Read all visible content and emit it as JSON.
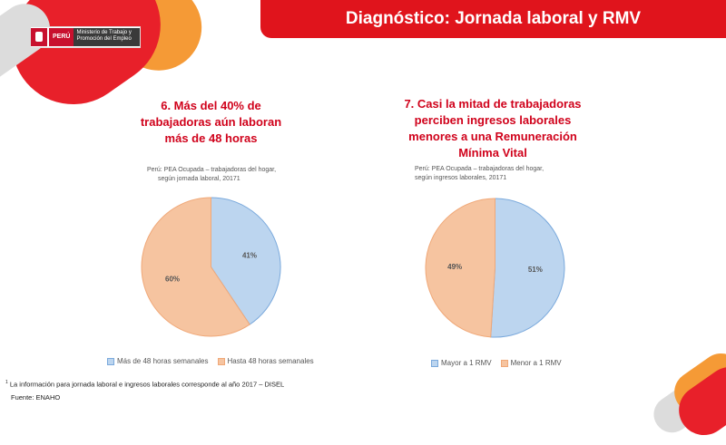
{
  "header": {
    "title": "Diagnóstico: Jornada laboral y RMV"
  },
  "logo": {
    "country": "PERÚ",
    "ministry": "Ministerio de Trabajo y Promoción del Empleo"
  },
  "panels": [
    {
      "heading": [
        "6. Más del 40% de",
        "trabajadoras aún laboran",
        "más de 48 horas"
      ],
      "subtitle": [
        "Perú: PEA Ocupada – trabajadoras del hogar,",
        "según jornada laboral, 20171"
      ]
    },
    {
      "heading": [
        "7. Casi la mitad de trabajadoras",
        "perciben ingresos laborales",
        "menores a una Remuneración",
        "Mínima Vital"
      ],
      "subtitle": [
        "Perú: PEA Ocupada – trabajadoras del hogar,",
        "según ingresos laborales, 20171"
      ]
    }
  ],
  "chart_data": [
    {
      "type": "pie",
      "categories": [
        "Más de 48 horas semanales",
        "Hasta 48 horas semanales"
      ],
      "values": [
        41,
        60
      ],
      "labels": [
        "41%",
        "60%"
      ],
      "colors": [
        "#bcd5ef",
        "#f6c4a0"
      ],
      "stroke_colors": [
        "#7aa9dc",
        "#f0a878"
      ],
      "legend": "bottom"
    },
    {
      "type": "pie",
      "categories": [
        "Mayor a 1 RMV",
        "Menor a 1 RMV"
      ],
      "values": [
        51,
        49
      ],
      "labels": [
        "51%",
        "49%"
      ],
      "colors": [
        "#bcd5ef",
        "#f6c4a0"
      ],
      "stroke_colors": [
        "#7aa9dc",
        "#f0a878"
      ],
      "legend": "bottom"
    }
  ],
  "footnote": {
    "marker": "1",
    "text": " La información para jornada laboral e ingresos laborales corresponde al año 2017 – DISEL"
  },
  "source": "Fuente: ENAHO"
}
